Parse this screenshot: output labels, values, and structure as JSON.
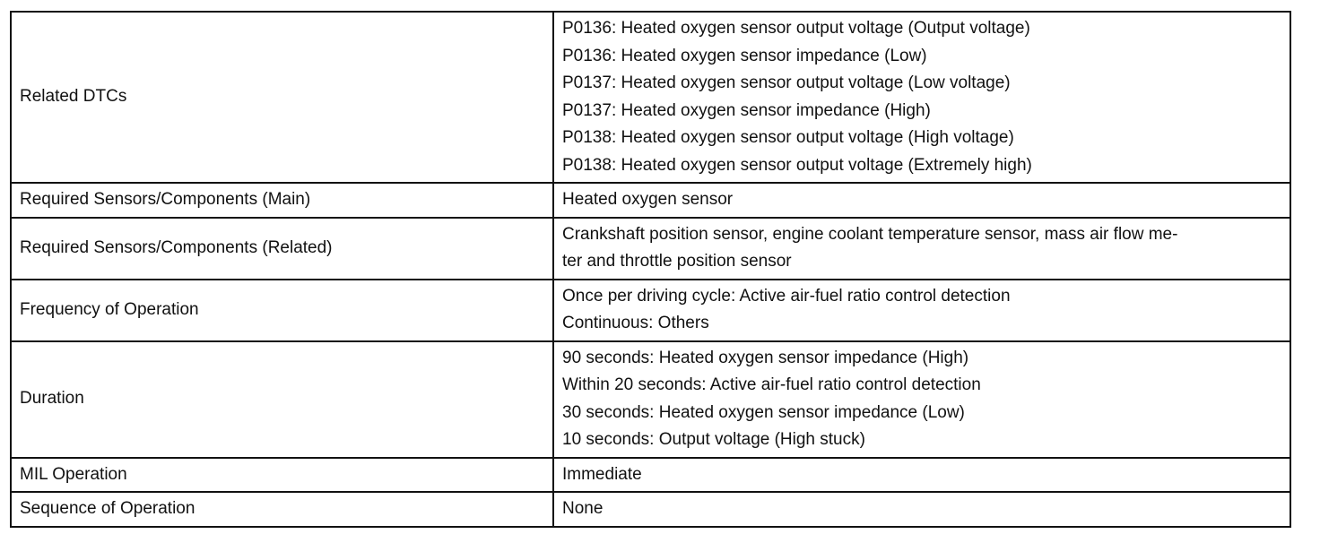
{
  "rows": [
    {
      "label": "Related DTCs",
      "lines": [
        "P0136: Heated oxygen sensor output voltage (Output voltage)",
        "P0136: Heated oxygen sensor impedance (Low)",
        "P0137: Heated oxygen sensor output voltage (Low voltage)",
        "P0137: Heated oxygen sensor impedance (High)",
        "P0138: Heated oxygen sensor output voltage (High voltage)",
        "P0138: Heated oxygen sensor output voltage (Extremely high)"
      ]
    },
    {
      "label": "Required Sensors/Components (Main)",
      "lines": [
        "Heated oxygen sensor"
      ]
    },
    {
      "label": "Required Sensors/Components (Related)",
      "lines": [
        "Crankshaft position sensor, engine coolant temperature sensor, mass air flow me-",
        "ter and throttle position sensor"
      ]
    },
    {
      "label": "Frequency of Operation",
      "lines": [
        "Once per driving cycle: Active air-fuel ratio control detection",
        "Continuous: Others"
      ]
    },
    {
      "label": "Duration",
      "lines": [
        "90 seconds: Heated oxygen sensor impedance (High)",
        "Within 20 seconds: Active air-fuel ratio control detection",
        "30 seconds: Heated oxygen sensor impedance (Low)",
        "10 seconds: Output voltage (High stuck)"
      ]
    },
    {
      "label": "MIL Operation",
      "lines": [
        "Immediate"
      ]
    },
    {
      "label": "Sequence of Operation",
      "lines": [
        "None"
      ]
    }
  ]
}
